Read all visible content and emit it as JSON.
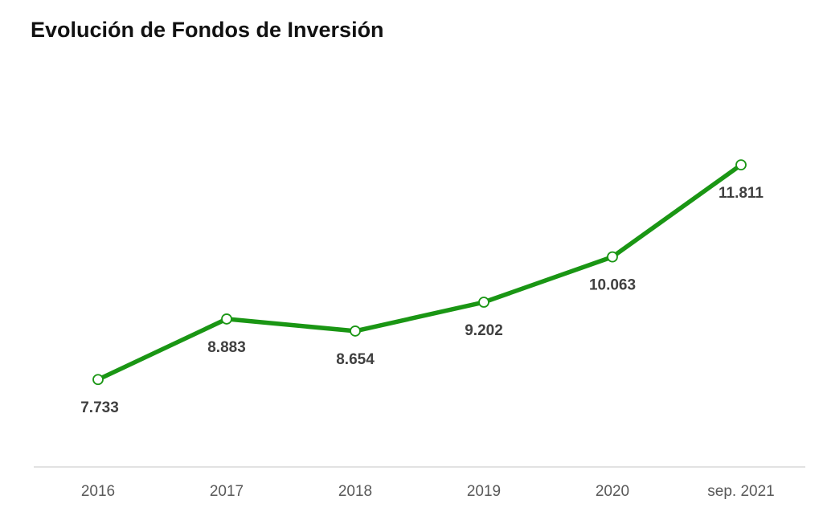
{
  "chart_data": {
    "type": "line",
    "title": "Evolución de Fondos de Inversión",
    "xlabel": "",
    "ylabel": "",
    "categories": [
      "2016",
      "2017",
      "2018",
      "2019",
      "2020",
      "sep. 2021"
    ],
    "series": [
      {
        "values": [
          7733,
          8883,
          8654,
          9202,
          10063,
          11811
        ],
        "labels": [
          "7.733",
          "8.883",
          "8.654",
          "9.202",
          "10.063",
          "11.811"
        ],
        "color": "#1a9614"
      }
    ],
    "ylim": [
      6500,
      12500
    ],
    "grid": false,
    "legend": "none",
    "axis_color": "#d9d9d9",
    "marker_fill": "#ffffff"
  }
}
